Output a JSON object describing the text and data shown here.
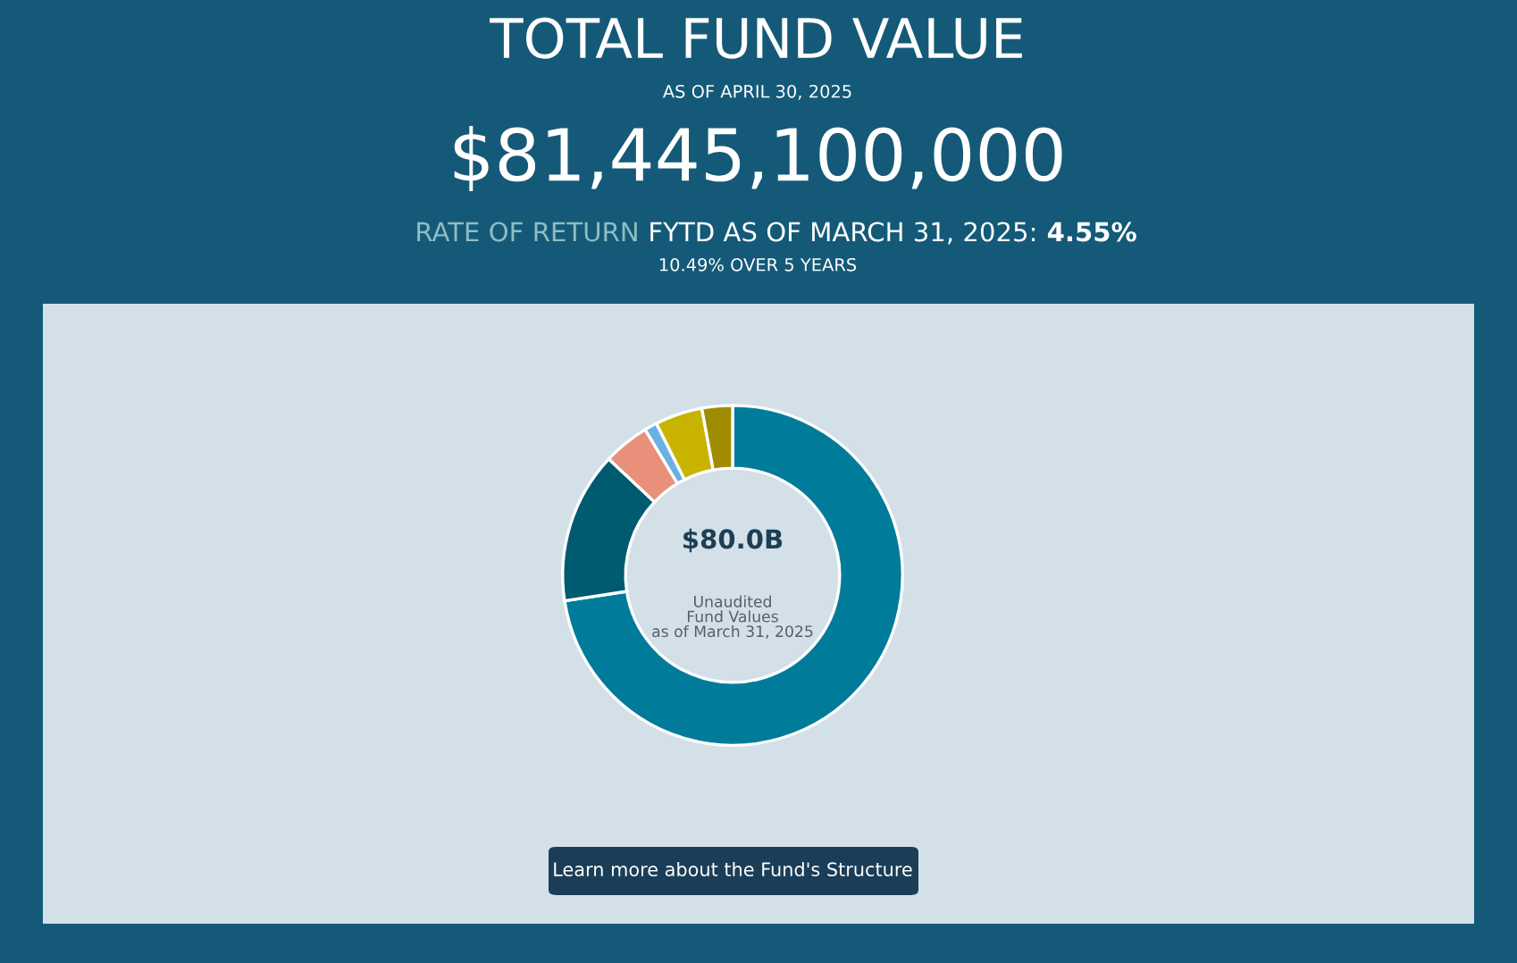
{
  "chart_data": {
    "type": "donut",
    "title": "TOTAL FUND VALUE",
    "subtitle": "AS OF APRIL 30, 2025",
    "categories": [
      null,
      null,
      null,
      null,
      null,
      null
    ],
    "values": [
      72.6,
      14.4,
      4.4,
      1.2,
      4.5,
      2.9
    ],
    "colors": [
      "#007c9a",
      "#005a70",
      "#e8907a",
      "#6ab0e0",
      "#c8b400",
      "#a08c00"
    ],
    "annotations": [
      "$81,445,100,000",
      "RATE OF RETURN",
      "FYTD AS OF MARCH 31, 2025:",
      "4.55%",
      "10.49% OVER 5 YEARS",
      "$80.0B",
      "Unaudited\nFund Values\nas of March 31, 2025",
      "Learn more about the Fund's Structure"
    ]
  }
}
